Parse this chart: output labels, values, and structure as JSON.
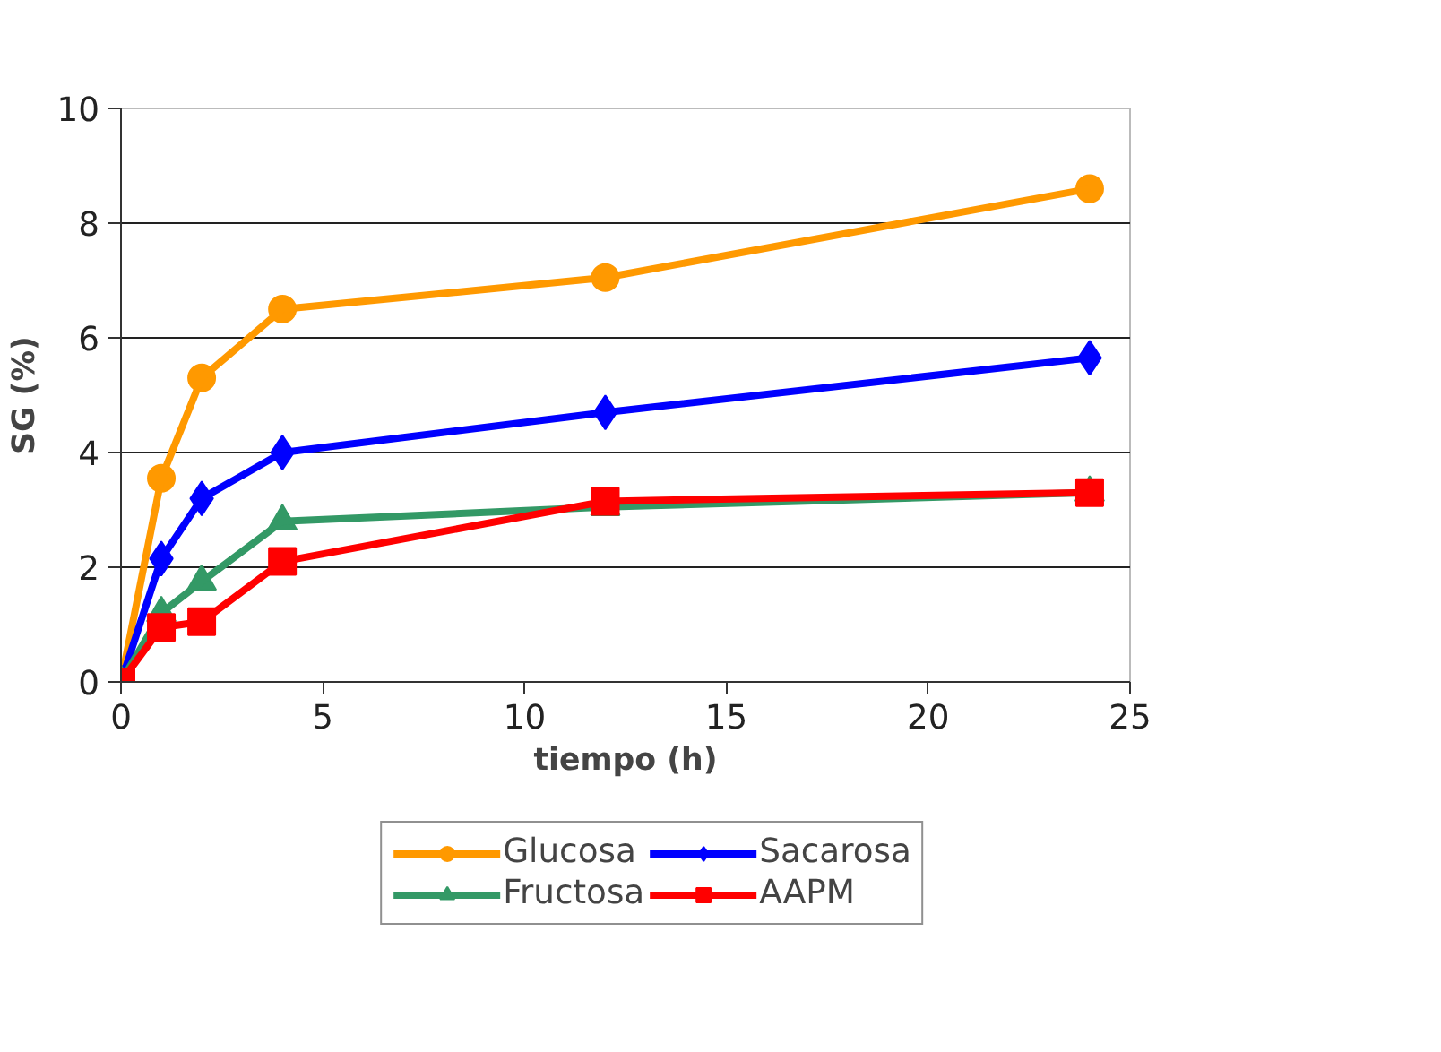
{
  "chart_data": {
    "type": "line",
    "xlabel": "tiempo (h)",
    "ylabel": "SG (%)",
    "x": [
      0,
      1,
      2,
      4,
      12,
      24
    ],
    "series": [
      {
        "name": "Glucosa",
        "color": "#ff9900",
        "marker": "circle",
        "values": [
          0,
          3.55,
          5.3,
          6.5,
          7.05,
          8.6
        ]
      },
      {
        "name": "Sacarosa",
        "color": "#0000ff",
        "marker": "diamond",
        "values": [
          0,
          2.15,
          3.2,
          4.0,
          4.7,
          5.65
        ]
      },
      {
        "name": "Fructosa",
        "color": "#339966",
        "marker": "triangle",
        "values": [
          0,
          1.2,
          1.75,
          2.8,
          3.05,
          3.3
        ]
      },
      {
        "name": "AAPM",
        "color": "#ff0000",
        "marker": "square",
        "values": [
          0,
          0.95,
          1.05,
          2.1,
          3.15,
          3.3
        ]
      }
    ],
    "xlim": [
      0,
      25
    ],
    "xticks": [
      0,
      5,
      10,
      15,
      20,
      25
    ],
    "ylim": [
      0,
      10
    ],
    "yticks": [
      0,
      2,
      4,
      6,
      8,
      10
    ],
    "grid": "y",
    "legend": "bottom",
    "line_style": "solid"
  }
}
